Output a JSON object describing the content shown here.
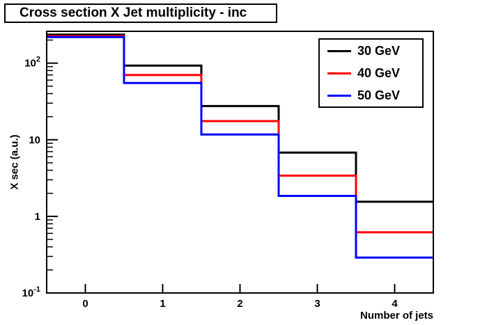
{
  "chart_data": {
    "type": "step-histogram",
    "title": "Cross section X Jet multiplicity - inc",
    "xlabel": "Number of jets",
    "ylabel": "X sec (a.u.)",
    "yscale": "log",
    "grid": false,
    "legend_position": "top-right",
    "xlim": [
      -0.5,
      4.5
    ],
    "ylim": [
      0.1,
      260
    ],
    "bin_edges": [
      -0.5,
      0.5,
      1.5,
      2.5,
      3.5,
      4.5
    ],
    "categories": [
      0,
      1,
      2,
      3,
      4
    ],
    "x_ticks": [
      0,
      1,
      2,
      3,
      4
    ],
    "y_ticks": [
      0.1,
      1,
      10,
      100
    ],
    "series": [
      {
        "name": "30 GeV",
        "color": "#000000",
        "values": [
          235,
          93,
          27.5,
          6.8,
          1.55
        ]
      },
      {
        "name": "40 GeV",
        "color": "#ff0000",
        "values": [
          226,
          70,
          17.5,
          3.4,
          0.62
        ]
      },
      {
        "name": "50 GeV",
        "color": "#0000ff",
        "values": [
          219,
          55,
          11.7,
          1.85,
          0.29
        ]
      }
    ]
  }
}
